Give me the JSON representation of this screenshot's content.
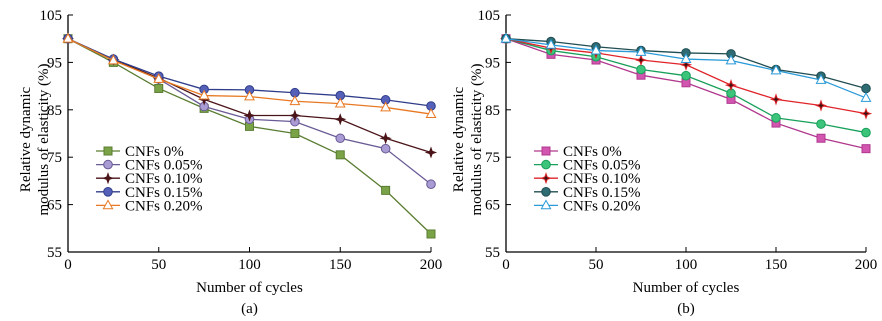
{
  "chart_data": [
    {
      "type": "line",
      "panel_label": "(a)",
      "xlabel": "Number of cycles",
      "ylabel_lines": [
        "Relative dynamic",
        "modulus of elasticity (%)"
      ],
      "xlim": [
        0,
        200
      ],
      "ylim": [
        55,
        105
      ],
      "xticks": [
        0,
        50,
        100,
        150,
        200
      ],
      "yticks": [
        55,
        65,
        75,
        85,
        95,
        105
      ],
      "grid": false,
      "legend_position": "bottom-left",
      "x": [
        0,
        25,
        50,
        75,
        100,
        125,
        150,
        175,
        200
      ],
      "series": [
        {
          "name": "CNFs 0%",
          "color": "#5a7d32",
          "fill": "#7aa348",
          "marker": "square",
          "values": [
            100,
            95,
            89.5,
            85.3,
            81.5,
            80,
            75.5,
            68,
            58.8
          ]
        },
        {
          "name": "CNFs 0.05%",
          "color": "#6a5a95",
          "fill": "#a99bd3",
          "marker": "circle",
          "values": [
            100,
            95.5,
            91.5,
            85.7,
            83,
            82.5,
            79,
            76.8,
            69.3
          ]
        },
        {
          "name": "CNFs 0.10%",
          "color": "#4a1418",
          "fill": "#4a1418",
          "marker": "star",
          "values": [
            100,
            95.6,
            91.7,
            87.2,
            83.8,
            83.8,
            83,
            79,
            76
          ]
        },
        {
          "name": "CNFs 0.15%",
          "color": "#2f3d8a",
          "fill": "#5560b8",
          "marker": "circle",
          "values": [
            100,
            95.7,
            92.1,
            89.3,
            89.2,
            88.6,
            88,
            87.1,
            85.8
          ]
        },
        {
          "name": "CNFs 0.20%",
          "color": "#e87822",
          "fill": "#ffffff",
          "marker": "triangle",
          "values": [
            100,
            95.4,
            91.5,
            88,
            87.8,
            86.8,
            86.3,
            85.5,
            84.1
          ]
        }
      ]
    },
    {
      "type": "line",
      "panel_label": "(b)",
      "xlabel": "Number of cycles",
      "ylabel_lines": [
        "Relative dynamic",
        "modulus of elasticity (%)"
      ],
      "xlim": [
        0,
        200
      ],
      "ylim": [
        55,
        105
      ],
      "xticks": [
        0,
        50,
        100,
        150,
        200
      ],
      "yticks": [
        55,
        65,
        75,
        85,
        95,
        105
      ],
      "grid": false,
      "legend_position": "bottom-left",
      "x": [
        0,
        25,
        50,
        75,
        100,
        125,
        150,
        175,
        200
      ],
      "series": [
        {
          "name": "CNFs 0%",
          "color": "#b0388e",
          "fill": "#d255b0",
          "marker": "square",
          "values": [
            100,
            96.7,
            95.5,
            92.3,
            90.7,
            87.2,
            82.2,
            79,
            76.8
          ]
        },
        {
          "name": "CNFs 0.05%",
          "color": "#18a05a",
          "fill": "#3cc47a",
          "marker": "circle",
          "values": [
            100,
            97.5,
            96.2,
            93.5,
            92.2,
            88.5,
            83.3,
            82,
            80.2
          ]
        },
        {
          "name": "CNFs 0.10%",
          "color": "#e0242a",
          "fill": "#3a1010",
          "marker": "star",
          "values": [
            100,
            98,
            97,
            95.5,
            94.5,
            90.2,
            87.2,
            85.9,
            84.2
          ]
        },
        {
          "name": "CNFs 0.15%",
          "color": "#1f4d52",
          "fill": "#2e6b72",
          "marker": "circle",
          "values": [
            100,
            99.4,
            98.3,
            97.5,
            97,
            96.8,
            93.5,
            92.1,
            89.5
          ]
        },
        {
          "name": "CNFs 0.20%",
          "color": "#2a9ad8",
          "fill": "#ffffff",
          "marker": "triangle",
          "values": [
            100,
            98.7,
            97.5,
            97.2,
            95.7,
            95.4,
            93.3,
            91.3,
            87.5
          ]
        }
      ]
    }
  ]
}
